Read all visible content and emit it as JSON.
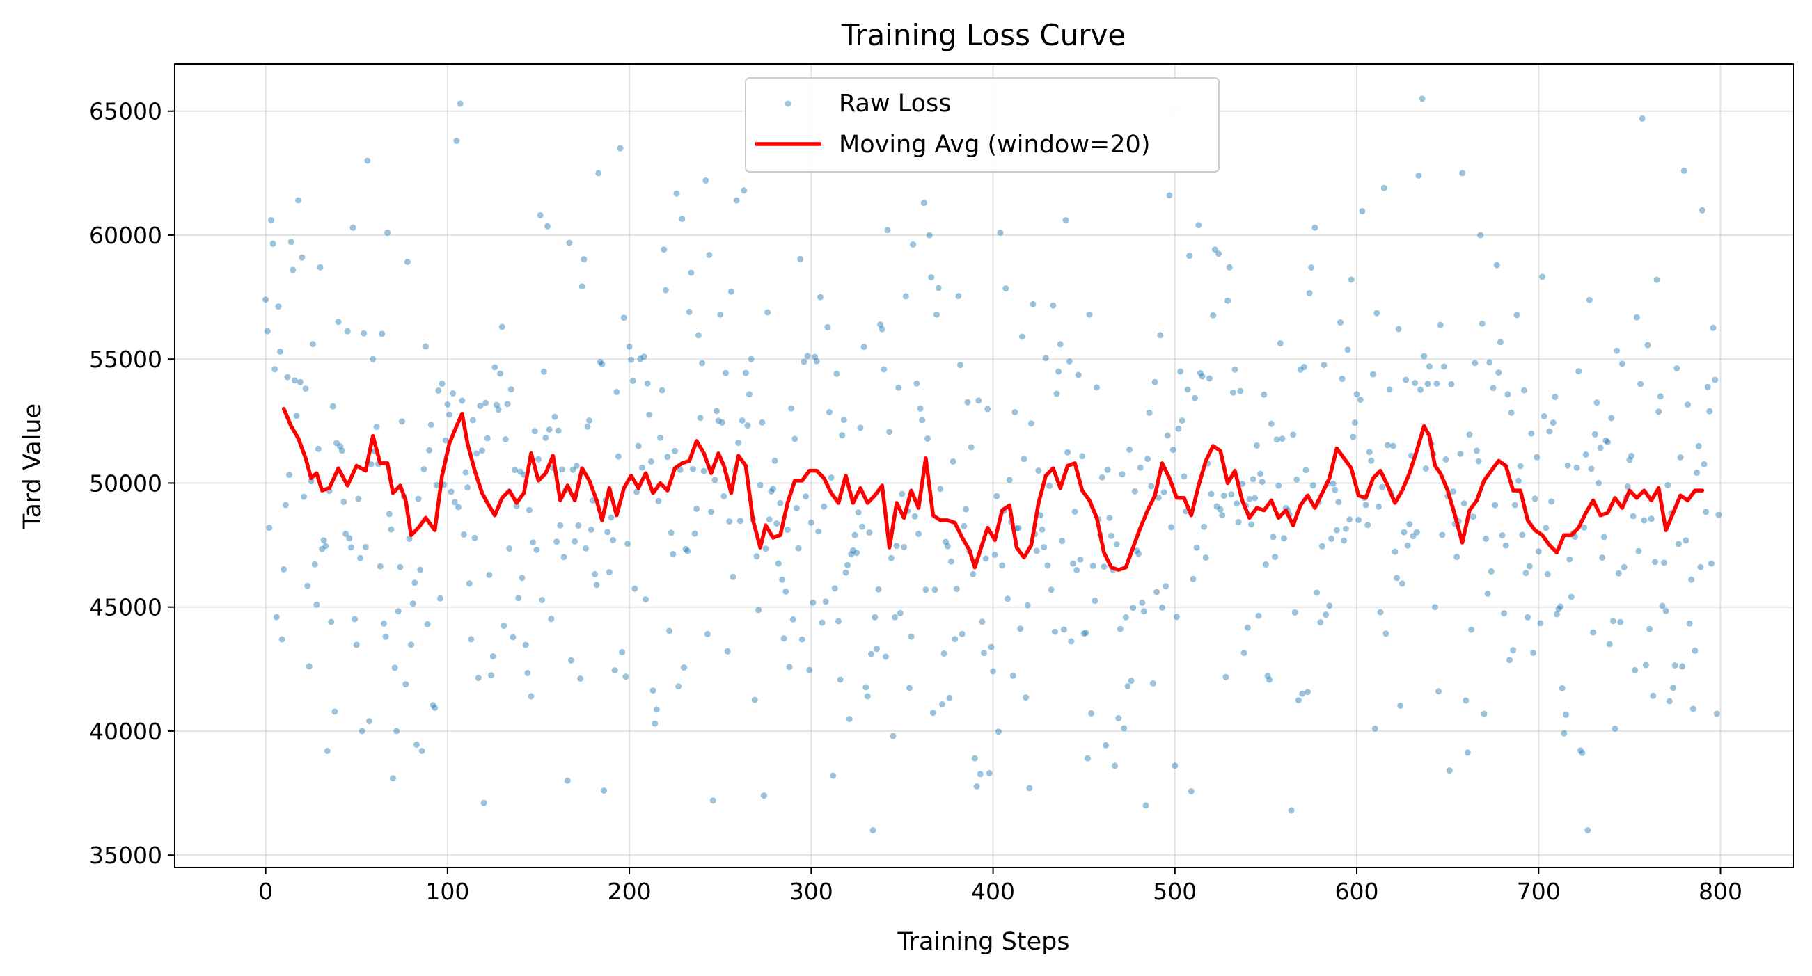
{
  "chart_data": {
    "type": "scatter",
    "title": "Training Loss Curve",
    "xlabel": "Training Steps",
    "ylabel": "Tard Value",
    "xlim": [
      -50,
      840
    ],
    "ylim": [
      34500,
      66900
    ],
    "xticks": [
      0,
      100,
      200,
      300,
      400,
      500,
      600,
      700,
      800
    ],
    "yticks": [
      35000,
      40000,
      45000,
      50000,
      55000,
      60000,
      65000
    ],
    "xtick_labels": [
      "0",
      "100",
      "200",
      "300",
      "400",
      "500",
      "600",
      "700",
      "800"
    ],
    "ytick_labels": [
      "35000",
      "40000",
      "45000",
      "50000",
      "55000",
      "60000",
      "65000"
    ],
    "grid": true,
    "legend_position": "top-center",
    "colors": {
      "raw": "#1f77b4",
      "moving_avg": "#ff0000"
    },
    "series": [
      {
        "name": "Raw Loss",
        "type": "scatter",
        "distribution": {
          "count": 800,
          "min": 36000,
          "max": 65500,
          "mean": 49500
        },
        "sample_points": [
          [
            0,
            57400
          ],
          [
            2,
            48200
          ],
          [
            3,
            60600
          ],
          [
            6,
            44600
          ],
          [
            8,
            55300
          ],
          [
            9,
            43700
          ],
          [
            15,
            58600
          ],
          [
            18,
            61400
          ],
          [
            20,
            59100
          ],
          [
            28,
            45100
          ],
          [
            30,
            58700
          ],
          [
            34,
            39200
          ],
          [
            40,
            56500
          ],
          [
            48,
            60300
          ],
          [
            53,
            40000
          ],
          [
            56,
            63000
          ],
          [
            57,
            40400
          ],
          [
            67,
            60100
          ],
          [
            70,
            38100
          ],
          [
            72,
            40000
          ],
          [
            86,
            39200
          ],
          [
            105,
            63800
          ],
          [
            107,
            65300
          ],
          [
            120,
            37100
          ],
          [
            123,
            46300
          ],
          [
            130,
            56300
          ],
          [
            146,
            41400
          ],
          [
            151,
            60800
          ],
          [
            166,
            38000
          ],
          [
            183,
            62500
          ],
          [
            186,
            37600
          ],
          [
            195,
            63500
          ],
          [
            214,
            40300
          ],
          [
            242,
            62200
          ],
          [
            244,
            59200
          ],
          [
            246,
            37200
          ],
          [
            259,
            61400
          ],
          [
            263,
            61800
          ],
          [
            274,
            37400
          ],
          [
            280,
            50900
          ],
          [
            305,
            57500
          ],
          [
            312,
            38200
          ],
          [
            334,
            36000
          ],
          [
            342,
            60200
          ],
          [
            345,
            39800
          ],
          [
            362,
            61300
          ],
          [
            366,
            58300
          ],
          [
            390,
            38900
          ],
          [
            398,
            38300
          ],
          [
            404,
            60100
          ],
          [
            420,
            37700
          ],
          [
            437,
            55600
          ],
          [
            440,
            60600
          ],
          [
            467,
            38600
          ],
          [
            484,
            37000
          ],
          [
            497,
            61600
          ],
          [
            500,
            38600
          ],
          [
            513,
            60400
          ],
          [
            530,
            58700
          ],
          [
            564,
            36800
          ],
          [
            577,
            60300
          ],
          [
            610,
            40100
          ],
          [
            615,
            61900
          ],
          [
            634,
            62400
          ],
          [
            636,
            65500
          ],
          [
            658,
            62500
          ],
          [
            668,
            60000
          ],
          [
            727,
            36000
          ],
          [
            742,
            40100
          ],
          [
            757,
            64700
          ],
          [
            765,
            58200
          ],
          [
            780,
            62600
          ],
          [
            790,
            61000
          ],
          [
            798,
            40700
          ]
        ]
      },
      {
        "name": "Moving Avg (window=20)",
        "type": "line",
        "points": [
          [
            10,
            53000
          ],
          [
            14,
            52300
          ],
          [
            18,
            51800
          ],
          [
            22,
            51000
          ],
          [
            25,
            50200
          ],
          [
            28,
            50400
          ],
          [
            31,
            49700
          ],
          [
            35,
            49800
          ],
          [
            40,
            50600
          ],
          [
            45,
            49900
          ],
          [
            50,
            50700
          ],
          [
            55,
            50500
          ],
          [
            59,
            51900
          ],
          [
            63,
            50800
          ],
          [
            67,
            50800
          ],
          [
            70,
            49600
          ],
          [
            74,
            49900
          ],
          [
            77,
            49300
          ],
          [
            80,
            47900
          ],
          [
            84,
            48200
          ],
          [
            88,
            48600
          ],
          [
            93,
            48100
          ],
          [
            97,
            50300
          ],
          [
            101,
            51600
          ],
          [
            105,
            52300
          ],
          [
            108,
            52800
          ],
          [
            111,
            51600
          ],
          [
            115,
            50500
          ],
          [
            119,
            49600
          ],
          [
            122,
            49200
          ],
          [
            126,
            48700
          ],
          [
            130,
            49400
          ],
          [
            134,
            49700
          ],
          [
            138,
            49200
          ],
          [
            142,
            49600
          ],
          [
            146,
            51200
          ],
          [
            150,
            50100
          ],
          [
            154,
            50400
          ],
          [
            158,
            51100
          ],
          [
            162,
            49300
          ],
          [
            166,
            49900
          ],
          [
            170,
            49300
          ],
          [
            174,
            50600
          ],
          [
            178,
            50100
          ],
          [
            182,
            49300
          ],
          [
            185,
            48500
          ],
          [
            189,
            49800
          ],
          [
            193,
            48700
          ],
          [
            197,
            49800
          ],
          [
            201,
            50300
          ],
          [
            205,
            49800
          ],
          [
            209,
            50400
          ],
          [
            213,
            49600
          ],
          [
            217,
            50000
          ],
          [
            221,
            49700
          ],
          [
            225,
            50600
          ],
          [
            229,
            50800
          ],
          [
            233,
            50900
          ],
          [
            237,
            51700
          ],
          [
            241,
            51200
          ],
          [
            245,
            50400
          ],
          [
            249,
            51200
          ],
          [
            252,
            50700
          ],
          [
            256,
            49600
          ],
          [
            260,
            51100
          ],
          [
            264,
            50700
          ],
          [
            268,
            48500
          ],
          [
            272,
            47400
          ],
          [
            275,
            48300
          ],
          [
            279,
            47800
          ],
          [
            283,
            47900
          ],
          [
            287,
            49200
          ],
          [
            291,
            50100
          ],
          [
            295,
            50100
          ],
          [
            299,
            50500
          ],
          [
            303,
            50500
          ],
          [
            307,
            50200
          ],
          [
            311,
            49600
          ],
          [
            315,
            49200
          ],
          [
            319,
            50300
          ],
          [
            323,
            49200
          ],
          [
            327,
            49800
          ],
          [
            331,
            49200
          ],
          [
            335,
            49500
          ],
          [
            339,
            49900
          ],
          [
            343,
            47400
          ],
          [
            347,
            49200
          ],
          [
            351,
            48600
          ],
          [
            355,
            49700
          ],
          [
            359,
            49000
          ],
          [
            363,
            51000
          ],
          [
            367,
            48700
          ],
          [
            371,
            48500
          ],
          [
            375,
            48500
          ],
          [
            379,
            48400
          ],
          [
            383,
            47800
          ],
          [
            387,
            47300
          ],
          [
            390,
            46600
          ],
          [
            393,
            47300
          ],
          [
            397,
            48200
          ],
          [
            401,
            47700
          ],
          [
            405,
            48900
          ],
          [
            409,
            49100
          ],
          [
            413,
            47400
          ],
          [
            417,
            47000
          ],
          [
            421,
            47500
          ],
          [
            425,
            49200
          ],
          [
            429,
            50300
          ],
          [
            433,
            50600
          ],
          [
            437,
            49800
          ],
          [
            441,
            50700
          ],
          [
            445,
            50800
          ],
          [
            449,
            49700
          ],
          [
            453,
            49300
          ],
          [
            457,
            48600
          ],
          [
            461,
            47200
          ],
          [
            465,
            46600
          ],
          [
            469,
            46500
          ],
          [
            473,
            46600
          ],
          [
            477,
            47400
          ],
          [
            481,
            48200
          ],
          [
            485,
            48900
          ],
          [
            489,
            49500
          ],
          [
            493,
            50800
          ],
          [
            497,
            50200
          ],
          [
            501,
            49400
          ],
          [
            505,
            49400
          ],
          [
            509,
            48700
          ],
          [
            513,
            49900
          ],
          [
            517,
            50900
          ],
          [
            521,
            51500
          ],
          [
            525,
            51300
          ],
          [
            529,
            50000
          ],
          [
            533,
            50500
          ],
          [
            537,
            49300
          ],
          [
            541,
            48600
          ],
          [
            545,
            49000
          ],
          [
            549,
            48900
          ],
          [
            553,
            49300
          ],
          [
            557,
            48600
          ],
          [
            561,
            48900
          ],
          [
            565,
            48300
          ],
          [
            569,
            49100
          ],
          [
            573,
            49500
          ],
          [
            577,
            49000
          ],
          [
            581,
            49600
          ],
          [
            585,
            50200
          ],
          [
            589,
            51400
          ],
          [
            593,
            51000
          ],
          [
            597,
            50600
          ],
          [
            601,
            49500
          ],
          [
            605,
            49400
          ],
          [
            609,
            50200
          ],
          [
            613,
            50500
          ],
          [
            617,
            49900
          ],
          [
            621,
            49200
          ],
          [
            625,
            49700
          ],
          [
            629,
            50400
          ],
          [
            633,
            51300
          ],
          [
            637,
            52300
          ],
          [
            640,
            51900
          ],
          [
            643,
            50700
          ],
          [
            646,
            50400
          ],
          [
            650,
            49700
          ],
          [
            654,
            48700
          ],
          [
            658,
            47600
          ],
          [
            662,
            48900
          ],
          [
            666,
            49300
          ],
          [
            670,
            50100
          ],
          [
            674,
            50500
          ],
          [
            678,
            50900
          ],
          [
            682,
            50700
          ],
          [
            686,
            49700
          ],
          [
            690,
            49700
          ],
          [
            694,
            48500
          ],
          [
            698,
            48100
          ],
          [
            702,
            47900
          ],
          [
            706,
            47500
          ],
          [
            710,
            47200
          ],
          [
            714,
            47900
          ],
          [
            718,
            47900
          ],
          [
            722,
            48200
          ],
          [
            726,
            48800
          ],
          [
            730,
            49300
          ],
          [
            734,
            48700
          ],
          [
            738,
            48800
          ],
          [
            742,
            49400
          ],
          [
            746,
            49000
          ],
          [
            750,
            49700
          ],
          [
            754,
            49400
          ],
          [
            758,
            49700
          ],
          [
            762,
            49300
          ],
          [
            766,
            49800
          ],
          [
            770,
            48100
          ],
          [
            774,
            48800
          ],
          [
            778,
            49500
          ],
          [
            782,
            49300
          ],
          [
            786,
            49700
          ],
          [
            790,
            49700
          ]
        ]
      }
    ]
  }
}
